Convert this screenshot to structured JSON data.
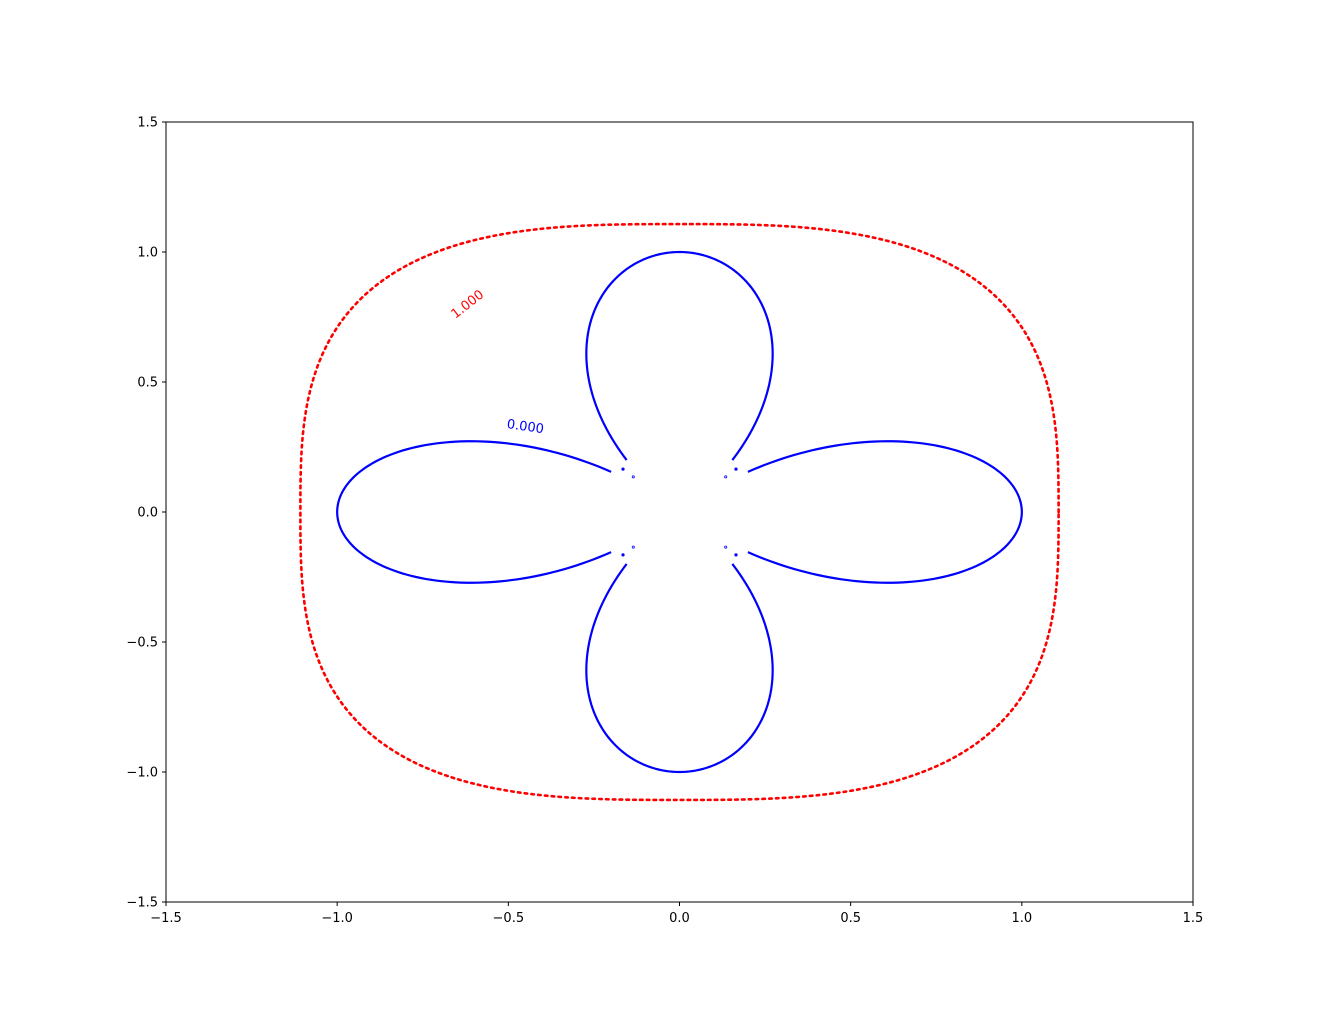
{
  "chart_data": {
    "type": "contour",
    "title": "",
    "xlabel": "",
    "ylabel": "",
    "xlim": [
      -1.5,
      1.5
    ],
    "ylim": [
      -1.5,
      1.5
    ],
    "grid": false,
    "xticks": [
      -1.5,
      -1.0,
      -0.5,
      0.0,
      0.5,
      1.0,
      1.5
    ],
    "yticks": [
      -1.5,
      -1.0,
      -0.5,
      0.0,
      0.5,
      1.0,
      1.5
    ],
    "xtick_labels": [
      "−1.5",
      "−1.0",
      "−0.5",
      "0.0",
      "0.5",
      "1.0",
      "1.5"
    ],
    "ytick_labels": [
      "−1.5",
      "−1.0",
      "−0.5",
      "0.0",
      "0.5",
      "1.0",
      "1.5"
    ],
    "levels": [
      {
        "value": 0.0,
        "label": "0.000",
        "color": "#0000ff",
        "linestyle": "solid",
        "shape": "four-leaf clover, leaves on axes",
        "x_extent": [
          -1.0,
          1.0
        ],
        "y_extent": [
          -1.0,
          1.0
        ],
        "label_position": [
          -0.45,
          0.33
        ]
      },
      {
        "value": 1.0,
        "label": "1.000",
        "color": "#ff0000",
        "linestyle": "dotted",
        "shape": "rounded square",
        "x_extent": [
          -1.13,
          1.13
        ],
        "y_extent": [
          -1.13,
          1.13
        ],
        "label_position": [
          -0.62,
          0.8
        ]
      }
    ]
  }
}
